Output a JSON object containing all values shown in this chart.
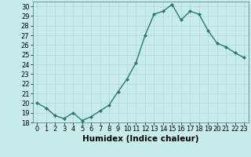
{
  "x": [
    0,
    1,
    2,
    3,
    4,
    5,
    6,
    7,
    8,
    9,
    10,
    11,
    12,
    13,
    14,
    15,
    16,
    17,
    18,
    19,
    20,
    21,
    22,
    23
  ],
  "y": [
    20,
    19.5,
    18.7,
    18.4,
    19.0,
    18.2,
    18.6,
    19.2,
    19.8,
    21.2,
    22.5,
    24.2,
    27.0,
    29.2,
    29.5,
    30.2,
    28.6,
    29.5,
    29.2,
    27.5,
    26.2,
    25.8,
    25.2,
    24.7
  ],
  "line_color": "#2a7a6a",
  "marker": "D",
  "marker_size": 2.0,
  "bg_color": "#c8ecec",
  "grid_color": "#b0d8d8",
  "xlabel": "Humidex (Indice chaleur)",
  "xlim": [
    -0.5,
    23.5
  ],
  "ylim": [
    18,
    30.5
  ],
  "yticks": [
    18,
    19,
    20,
    21,
    22,
    23,
    24,
    25,
    26,
    27,
    28,
    29,
    30
  ],
  "xticks": [
    0,
    1,
    2,
    3,
    4,
    5,
    6,
    7,
    8,
    9,
    10,
    11,
    12,
    13,
    14,
    15,
    16,
    17,
    18,
    19,
    20,
    21,
    22,
    23
  ],
  "xlabel_fontsize": 7.5,
  "tick_fontsize": 6.0,
  "line_width": 1.0
}
